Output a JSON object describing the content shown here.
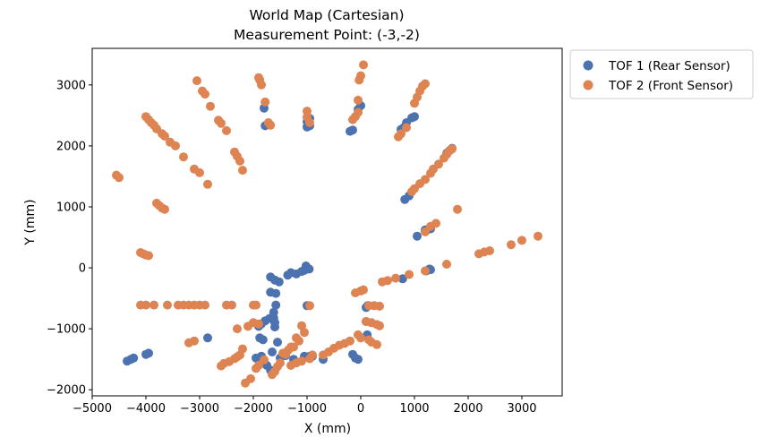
{
  "chart_data": {
    "type": "scatter",
    "title_line1": "World Map (Cartesian)",
    "title_line2": "Measurement Point: (-3,-2)",
    "xlabel": "X (mm)",
    "ylabel": "Y (mm)",
    "xlim": [
      -5000,
      3750
    ],
    "ylim": [
      -2100,
      3600
    ],
    "xticks": [
      -5000,
      -4000,
      -3000,
      -2000,
      -1000,
      0,
      1000,
      2000,
      3000
    ],
    "xtick_labels": [
      "−5000",
      "−4000",
      "−3000",
      "−2000",
      "−1000",
      "0",
      "1000",
      "2000",
      "3000"
    ],
    "yticks": [
      -2000,
      -1000,
      0,
      1000,
      2000,
      3000
    ],
    "ytick_labels": [
      "−2000",
      "−1000",
      "0",
      "1000",
      "2000",
      "3000"
    ],
    "grid": false,
    "legend_position": "outside-top-right",
    "series": [
      {
        "name": "TOF 1 (Rear Sensor)",
        "color": "#4c72b0",
        "points": [
          [
            -4350,
            -1530
          ],
          [
            -4280,
            -1500
          ],
          [
            -4230,
            -1480
          ],
          [
            -4000,
            -1420
          ],
          [
            -3950,
            -1400
          ],
          [
            -2850,
            -1150
          ],
          [
            -1820,
            -1180
          ],
          [
            -1880,
            -1150
          ],
          [
            -1900,
            -960
          ],
          [
            -1850,
            -920
          ],
          [
            -1780,
            -870
          ],
          [
            -1700,
            -830
          ],
          [
            -1620,
            -820
          ],
          [
            -1950,
            -1480
          ],
          [
            -1850,
            -1450
          ],
          [
            -1650,
            -1380
          ],
          [
            -1550,
            -1220
          ],
          [
            -1600,
            -970
          ],
          [
            -1600,
            -900
          ],
          [
            -1620,
            -730
          ],
          [
            -1580,
            -610
          ],
          [
            -1680,
            -400
          ],
          [
            -1580,
            -420
          ],
          [
            -1680,
            -150
          ],
          [
            -1600,
            -200
          ],
          [
            -1520,
            -230
          ],
          [
            -1360,
            -120
          ],
          [
            -1300,
            -80
          ],
          [
            -1200,
            -100
          ],
          [
            -1100,
            -60
          ],
          [
            -1050,
            -40
          ],
          [
            -1020,
            30
          ],
          [
            -960,
            -20
          ],
          [
            -1000,
            -620
          ],
          [
            -1750,
            -1600
          ],
          [
            -1680,
            -1680
          ],
          [
            -1650,
            -1720
          ],
          [
            -1500,
            -1480
          ],
          [
            -1400,
            -1440
          ],
          [
            -950,
            -1450
          ],
          [
            -900,
            -1450
          ],
          [
            -700,
            -1500
          ],
          [
            -150,
            -1420
          ],
          [
            -100,
            -1480
          ],
          [
            -50,
            -1500
          ],
          [
            120,
            -1100
          ],
          [
            100,
            -880
          ],
          [
            100,
            -650
          ],
          [
            130,
            -620
          ],
          [
            -1250,
            -1500
          ],
          [
            -1050,
            -1450
          ],
          [
            780,
            -180
          ],
          [
            1220,
            -50
          ],
          [
            1280,
            -20
          ],
          [
            1300,
            -30
          ],
          [
            1050,
            520
          ],
          [
            1200,
            620
          ],
          [
            1250,
            630
          ],
          [
            1300,
            640
          ],
          [
            1600,
            1880
          ],
          [
            1650,
            1920
          ],
          [
            1700,
            1960
          ],
          [
            820,
            1120
          ],
          [
            900,
            1180
          ],
          [
            850,
            2380
          ],
          [
            950,
            2460
          ],
          [
            1000,
            2480
          ],
          [
            800,
            2300
          ],
          [
            750,
            2270
          ],
          [
            -200,
            2240
          ],
          [
            -150,
            2260
          ],
          [
            -50,
            2600
          ],
          [
            0,
            2660
          ],
          [
            -1000,
            2310
          ],
          [
            -950,
            2330
          ],
          [
            -1000,
            2400
          ],
          [
            -950,
            2450
          ],
          [
            -1800,
            2620
          ],
          [
            -1700,
            2350
          ],
          [
            -1780,
            2330
          ]
        ]
      },
      {
        "name": "TOF 2 (Front Sensor)",
        "color": "#dd8452",
        "points": [
          [
            -4550,
            1520
          ],
          [
            -4500,
            1480
          ],
          [
            -4000,
            2480
          ],
          [
            -3950,
            2430
          ],
          [
            -3900,
            2380
          ],
          [
            -3850,
            2340
          ],
          [
            -3800,
            2280
          ],
          [
            -3700,
            2200
          ],
          [
            -3650,
            2160
          ],
          [
            -3550,
            2060
          ],
          [
            -3450,
            2000
          ],
          [
            -3300,
            1820
          ],
          [
            -3100,
            1620
          ],
          [
            -3000,
            1560
          ],
          [
            -2850,
            1370
          ],
          [
            -3050,
            3070
          ],
          [
            -2950,
            2900
          ],
          [
            -2900,
            2850
          ],
          [
            -2800,
            2650
          ],
          [
            -2650,
            2420
          ],
          [
            -2600,
            2370
          ],
          [
            -2500,
            2250
          ],
          [
            -2350,
            1900
          ],
          [
            -2300,
            1830
          ],
          [
            -2250,
            1750
          ],
          [
            -2200,
            1600
          ],
          [
            -1900,
            3120
          ],
          [
            -1880,
            3080
          ],
          [
            -1850,
            3000
          ],
          [
            -1780,
            2720
          ],
          [
            -1720,
            2380
          ],
          [
            -1680,
            2340
          ],
          [
            -1000,
            2570
          ],
          [
            -1000,
            2470
          ],
          [
            -950,
            2380
          ],
          [
            -150,
            2430
          ],
          [
            -100,
            2480
          ],
          [
            -50,
            2550
          ],
          [
            -50,
            2750
          ],
          [
            -30,
            3080
          ],
          [
            0,
            3150
          ],
          [
            50,
            3330
          ],
          [
            700,
            2150
          ],
          [
            750,
            2200
          ],
          [
            850,
            2300
          ],
          [
            1000,
            2700
          ],
          [
            1050,
            2800
          ],
          [
            1100,
            2900
          ],
          [
            1150,
            2980
          ],
          [
            1200,
            3020
          ],
          [
            950,
            1250
          ],
          [
            1000,
            1300
          ],
          [
            1100,
            1380
          ],
          [
            1200,
            1450
          ],
          [
            1300,
            1550
          ],
          [
            1350,
            1620
          ],
          [
            1450,
            1700
          ],
          [
            1550,
            1800
          ],
          [
            1600,
            1860
          ],
          [
            1650,
            1920
          ],
          [
            1700,
            1950
          ],
          [
            1200,
            590
          ],
          [
            1300,
            680
          ],
          [
            1400,
            730
          ],
          [
            1800,
            960
          ],
          [
            2200,
            230
          ],
          [
            2300,
            260
          ],
          [
            2400,
            280
          ],
          [
            2800,
            380
          ],
          [
            3000,
            450
          ],
          [
            3300,
            520
          ],
          [
            400,
            -230
          ],
          [
            500,
            -210
          ],
          [
            650,
            -170
          ],
          [
            900,
            -110
          ],
          [
            1200,
            -50
          ],
          [
            1600,
            60
          ],
          [
            -100,
            -410
          ],
          [
            0,
            -380
          ],
          [
            50,
            -360
          ],
          [
            150,
            -620
          ],
          [
            250,
            -620
          ],
          [
            350,
            -630
          ],
          [
            100,
            -880
          ],
          [
            200,
            -900
          ],
          [
            300,
            -930
          ],
          [
            350,
            -950
          ],
          [
            -50,
            -1100
          ],
          [
            0,
            -1150
          ],
          [
            150,
            -1180
          ],
          [
            200,
            -1220
          ],
          [
            300,
            -1260
          ],
          [
            -4100,
            250
          ],
          [
            -4050,
            230
          ],
          [
            -4000,
            210
          ],
          [
            -3950,
            200
          ],
          [
            -3800,
            1060
          ],
          [
            -3750,
            1020
          ],
          [
            -3700,
            980
          ],
          [
            -3650,
            960
          ],
          [
            -4100,
            -610
          ],
          [
            -4000,
            -610
          ],
          [
            -3850,
            -610
          ],
          [
            -3600,
            -610
          ],
          [
            -3400,
            -610
          ],
          [
            -3300,
            -610
          ],
          [
            -3200,
            -610
          ],
          [
            -3100,
            -610
          ],
          [
            -3000,
            -610
          ],
          [
            -2900,
            -610
          ],
          [
            -2500,
            -610
          ],
          [
            -2400,
            -610
          ],
          [
            -2000,
            -610
          ],
          [
            -1950,
            -610
          ],
          [
            -2100,
            -960
          ],
          [
            -2000,
            -900
          ],
          [
            -1900,
            -920
          ],
          [
            -2300,
            -1000
          ],
          [
            -3200,
            -1230
          ],
          [
            -3100,
            -1200
          ],
          [
            -2200,
            -1330
          ],
          [
            -2600,
            -1610
          ],
          [
            -2550,
            -1570
          ],
          [
            -2450,
            -1540
          ],
          [
            -2350,
            -1490
          ],
          [
            -2300,
            -1460
          ],
          [
            -2250,
            -1430
          ],
          [
            -2150,
            -1890
          ],
          [
            -2050,
            -1820
          ],
          [
            -1950,
            -1650
          ],
          [
            -1900,
            -1600
          ],
          [
            -1800,
            -1510
          ],
          [
            -1650,
            -1750
          ],
          [
            -1600,
            -1700
          ],
          [
            -1550,
            -1620
          ],
          [
            -1500,
            -1560
          ],
          [
            -1400,
            -1420
          ],
          [
            -1300,
            -1300
          ],
          [
            -1200,
            -1150
          ],
          [
            -1100,
            -950
          ],
          [
            -1450,
            -1400
          ],
          [
            -1350,
            -1350
          ],
          [
            -1250,
            -1300
          ],
          [
            -1150,
            -1200
          ],
          [
            -1050,
            -1060
          ],
          [
            -950,
            -620
          ],
          [
            -1300,
            -1600
          ],
          [
            -1200,
            -1560
          ],
          [
            -1100,
            -1530
          ],
          [
            -950,
            -1490
          ],
          [
            -900,
            -1430
          ],
          [
            -700,
            -1430
          ],
          [
            -600,
            -1380
          ],
          [
            -500,
            -1320
          ],
          [
            -400,
            -1270
          ],
          [
            -300,
            -1240
          ],
          [
            -200,
            -1200
          ]
        ]
      }
    ]
  }
}
